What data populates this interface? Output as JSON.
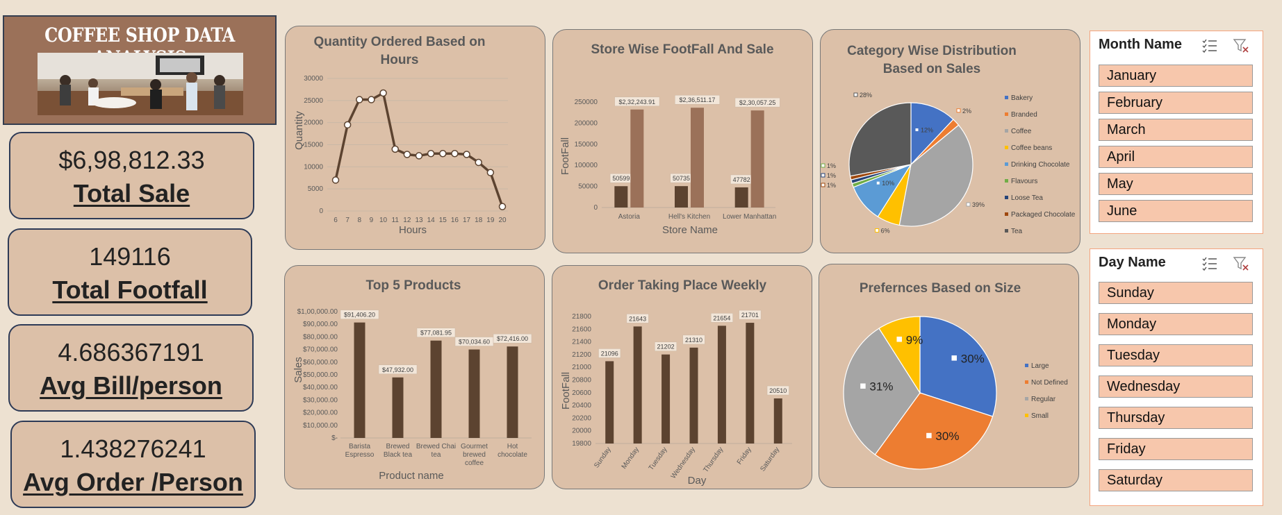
{
  "dashboard": {
    "title": "COFFEE SHOP DATA ANALYSIS"
  },
  "kpis": [
    {
      "value": "$6,98,812.33",
      "label": "Total Sale"
    },
    {
      "value": "149116",
      "label": "Total Footfall"
    },
    {
      "value": "4.686367191",
      "label": "Avg Bill/person"
    },
    {
      "value": "1.438276241",
      "label": "Avg Order /Person"
    }
  ],
  "chart_data": [
    {
      "id": "hours",
      "type": "line",
      "title": "Quantity Ordered Based on Hours",
      "title_lines": [
        "Quantity Ordered Based on",
        "Hours"
      ],
      "xlabel": "Hours",
      "ylabel": "Quantity",
      "x": [
        6,
        7,
        8,
        9,
        10,
        11,
        12,
        13,
        14,
        15,
        16,
        17,
        18,
        19,
        20
      ],
      "values": [
        7000,
        19500,
        25200,
        25200,
        26700,
        14000,
        12800,
        12500,
        13000,
        13000,
        13000,
        12800,
        11000,
        8700,
        1000
      ],
      "ylim": [
        0,
        30000
      ],
      "yticks": [
        0,
        5000,
        10000,
        15000,
        20000,
        25000,
        30000
      ],
      "ytick_labels": [
        "0",
        "5000",
        "10000",
        "15000",
        "20000",
        "25000",
        "30000"
      ],
      "grid": true,
      "color": "#5c4330"
    },
    {
      "id": "stores",
      "type": "bar",
      "title": "Store Wise FootFall And Sale",
      "xlabel": "Store Name",
      "ylabel": "FootFall",
      "categories": [
        "Astoria",
        "Hell's Kitchen",
        "Lower Manhattan"
      ],
      "series": [
        {
          "values": [
            50599,
            50735,
            47782
          ],
          "labels": [
            "50599",
            "50735",
            "47782"
          ],
          "color": "#5c4330"
        },
        {
          "values": [
            232243.91,
            236511.17,
            230057.25
          ],
          "labels": [
            "$2,32,243.91",
            "$2,36,511.17",
            "$2,30,057.25"
          ],
          "color": "#9b7159"
        }
      ],
      "ylim": [
        0,
        250000
      ],
      "yticks": [
        0,
        50000,
        100000,
        150000,
        200000,
        250000
      ],
      "ytick_labels": [
        "0",
        "50000",
        "100000",
        "150000",
        "200000",
        "250000"
      ],
      "grid": false
    },
    {
      "id": "category",
      "type": "pie",
      "title": "Category Wise Distribution Based on Sales",
      "title_lines": [
        "Category Wise Distribution",
        "Based on Sales"
      ],
      "categories": [
        "Bakery",
        "Branded",
        "Coffee",
        "Coffee beans",
        "Drinking Chocolate",
        "Flavours",
        "Loose Tea",
        "Packaged Chocolate",
        "Tea"
      ],
      "values": [
        12,
        2,
        39,
        6,
        10,
        1,
        1,
        1,
        28
      ],
      "labels": [
        "12%",
        "2%",
        "39%",
        "6%",
        "10%",
        "1%",
        "1%",
        "1%",
        "28%"
      ],
      "colors": [
        "#4472c4",
        "#ed7d31",
        "#a5a5a5",
        "#ffc000",
        "#5b9bd5",
        "#70ad47",
        "#264478",
        "#9e480e",
        "#595959"
      ],
      "legend": "right"
    },
    {
      "id": "products",
      "type": "bar",
      "title": "Top  5 Products",
      "xlabel": "Product name",
      "ylabel": "Sales",
      "categories": [
        "Barista Espresso",
        "Brewed Black tea",
        "Brewed Chai tea",
        "Gourmet brewed coffee",
        "Hot chocolate"
      ],
      "category_lines": [
        [
          "Barista",
          "Espresso"
        ],
        [
          "Brewed",
          "Black tea"
        ],
        [
          "Brewed Chai",
          "tea"
        ],
        [
          "Gourmet",
          "brewed",
          "coffee"
        ],
        [
          "Hot",
          "chocolate"
        ]
      ],
      "values": [
        91406.2,
        47932.0,
        77081.95,
        70034.6,
        72416.0
      ],
      "labels": [
        "$91,406.20",
        "$47,932.00",
        "$77,081.95",
        "$70,034.60",
        "$72,416.00"
      ],
      "ylim": [
        0,
        100000
      ],
      "yticks": [
        0,
        10000,
        20000,
        30000,
        40000,
        50000,
        60000,
        70000,
        80000,
        90000,
        100000
      ],
      "ytick_labels": [
        "$-",
        "$10,000.00",
        "$20,000.00",
        "$30,000.00",
        "$40,000.00",
        "$50,000.00",
        "$60,000.00",
        "$70,000.00",
        "$80,000.00",
        "$90,000.00",
        "$1,00,000.00"
      ],
      "color": "#5c4330"
    },
    {
      "id": "weekly",
      "type": "bar",
      "title": "Order Taking Place Weekly",
      "xlabel": "Day",
      "ylabel": "FootFall",
      "categories": [
        "Sunday",
        "Monday",
        "Tuesday",
        "Wednesday",
        "Thursday",
        "Friday",
        "Saturday"
      ],
      "values": [
        21096,
        21643,
        21202,
        21310,
        21654,
        21701,
        20510
      ],
      "labels": [
        "21096",
        "21643",
        "21202",
        "21310",
        "21654",
        "21701",
        "20510"
      ],
      "ylim": [
        19800,
        21800
      ],
      "yticks": [
        19800,
        20000,
        20200,
        20400,
        20600,
        20800,
        21000,
        21200,
        21400,
        21600,
        21800
      ],
      "ytick_labels": [
        "19800",
        "20000",
        "20200",
        "20400",
        "20600",
        "20800",
        "21000",
        "21200",
        "21400",
        "21600",
        "21800"
      ],
      "color": "#5c4330"
    },
    {
      "id": "size",
      "type": "pie",
      "title": "Prefernces Based on Size",
      "categories": [
        "Large",
        "Not Defined",
        "Regular",
        "Small"
      ],
      "values": [
        30,
        30,
        31,
        9
      ],
      "labels": [
        "30%",
        "30%",
        "31%",
        "9%"
      ],
      "colors": [
        "#4472c4",
        "#ed7d31",
        "#a5a5a5",
        "#ffc000"
      ],
      "legend": "right"
    }
  ],
  "slicers": {
    "month": {
      "title": "Month Name",
      "items": [
        "January",
        "February",
        "March",
        "April",
        "May",
        "June"
      ]
    },
    "day": {
      "title": "Day Name",
      "items": [
        "Sunday",
        "Monday",
        "Tuesday",
        "Wednesday",
        "Thursday",
        "Friday",
        "Saturday"
      ]
    }
  }
}
